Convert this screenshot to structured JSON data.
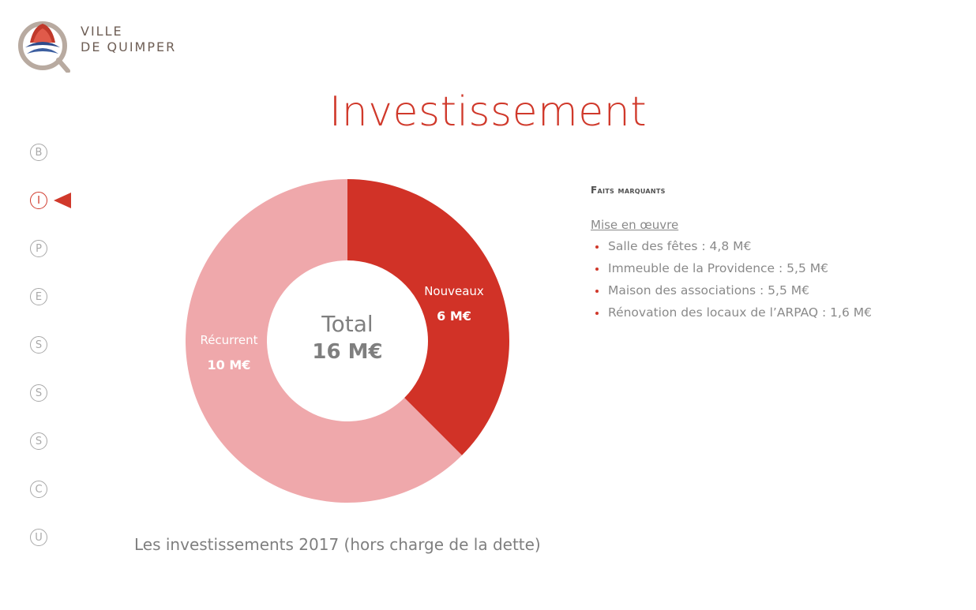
{
  "logo": {
    "line1": "VILLE",
    "line2": "DE QUIMPER"
  },
  "title": "Investissement",
  "nav": {
    "items": [
      "B",
      "I",
      "P",
      "E",
      "S",
      "S",
      "S",
      "C",
      "U"
    ],
    "active_index": 1
  },
  "colors": {
    "accent": "#d0392b",
    "nouveaux": "#d13227",
    "recurrent": "#efa8ab",
    "grey": "#7f7f7f"
  },
  "chart_data": {
    "type": "pie",
    "donut": true,
    "center_label": "Total",
    "center_value": "16 M€",
    "slices": [
      {
        "name": "Nouveaux",
        "value": 6,
        "label": "6 M€"
      },
      {
        "name": "Récurrent",
        "value": 10,
        "label": "10 M€"
      }
    ]
  },
  "side": {
    "heading": "Faits marquants",
    "subheading": "Mise en œuvre",
    "items": [
      "Salle des fêtes : 4,8 M€",
      "Immeuble de la Providence : 5,5 M€",
      "Maison des associations : 5,5 M€",
      "Rénovation des locaux de l’ARPAQ : 1,6 M€"
    ]
  },
  "caption": "Les investissements 2017 (hors charge de la dette)"
}
